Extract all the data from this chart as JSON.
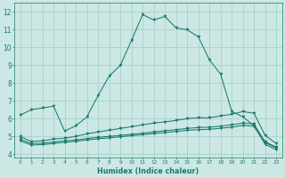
{
  "title": "",
  "xlabel": "Humidex (Indice chaleur)",
  "ylabel": "",
  "bg_color": "#cce8e4",
  "line_color": "#1a7a6e",
  "grid_color": "#aacfcc",
  "xlim": [
    -0.5,
    23.5
  ],
  "ylim": [
    3.8,
    12.5
  ],
  "xticks": [
    0,
    1,
    2,
    3,
    4,
    5,
    6,
    7,
    8,
    9,
    10,
    11,
    12,
    13,
    14,
    15,
    16,
    17,
    18,
    19,
    20,
    21,
    22,
    23
  ],
  "yticks": [
    4,
    5,
    6,
    7,
    8,
    9,
    10,
    11,
    12
  ],
  "line1_x": [
    0,
    1,
    2,
    3,
    4,
    5,
    6,
    7,
    8,
    9,
    10,
    11,
    12,
    13,
    14,
    15,
    16,
    17,
    18,
    19,
    20,
    21,
    22,
    23
  ],
  "line1_y": [
    6.2,
    6.5,
    6.6,
    6.7,
    5.3,
    5.6,
    6.1,
    7.3,
    8.4,
    9.0,
    10.4,
    11.85,
    11.55,
    11.75,
    11.1,
    11.0,
    10.6,
    9.3,
    8.5,
    6.4,
    6.1,
    5.6,
    4.7,
    4.4
  ],
  "line2_x": [
    0,
    1,
    2,
    3,
    4,
    5,
    6,
    7,
    8,
    9,
    10,
    11,
    12,
    13,
    14,
    15,
    16,
    17,
    18,
    19,
    20,
    21,
    22,
    23
  ],
  "line2_y": [
    5.0,
    4.72,
    4.75,
    4.85,
    4.9,
    5.0,
    5.15,
    5.25,
    5.35,
    5.45,
    5.55,
    5.65,
    5.75,
    5.82,
    5.9,
    6.0,
    6.05,
    6.05,
    6.15,
    6.25,
    6.4,
    6.3,
    5.05,
    4.6
  ],
  "line3_x": [
    0,
    1,
    2,
    3,
    4,
    5,
    6,
    7,
    8,
    9,
    10,
    11,
    12,
    13,
    14,
    15,
    16,
    17,
    18,
    19,
    20,
    21,
    22,
    23
  ],
  "line3_y": [
    4.85,
    4.6,
    4.62,
    4.68,
    4.75,
    4.8,
    4.88,
    4.95,
    5.0,
    5.06,
    5.12,
    5.18,
    5.25,
    5.32,
    5.38,
    5.45,
    5.5,
    5.52,
    5.58,
    5.65,
    5.75,
    5.7,
    4.65,
    4.35
  ],
  "line4_x": [
    0,
    1,
    2,
    3,
    4,
    5,
    6,
    7,
    8,
    9,
    10,
    11,
    12,
    13,
    14,
    15,
    16,
    17,
    18,
    19,
    20,
    21,
    22,
    23
  ],
  "line4_y": [
    4.75,
    4.52,
    4.54,
    4.6,
    4.67,
    4.72,
    4.8,
    4.87,
    4.92,
    4.98,
    5.04,
    5.1,
    5.16,
    5.22,
    5.28,
    5.34,
    5.38,
    5.4,
    5.46,
    5.52,
    5.62,
    5.57,
    4.55,
    4.25
  ]
}
